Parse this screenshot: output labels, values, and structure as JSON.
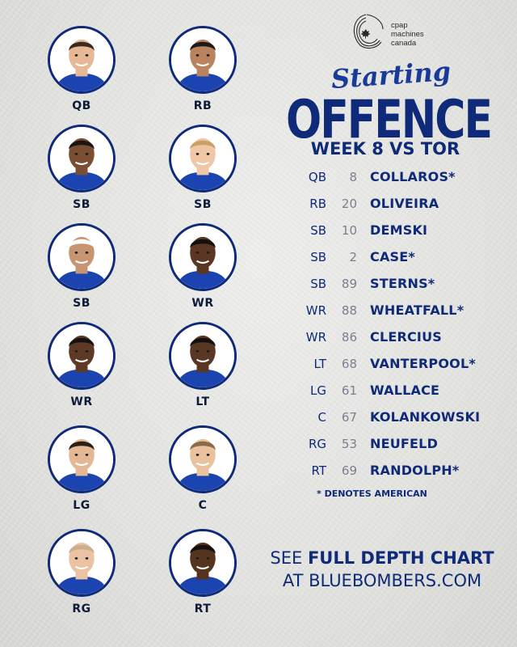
{
  "sponsor": {
    "logo_icon": "cpap-leaf-swirl-icon",
    "lines": [
      "cpap",
      "machines",
      "canada"
    ]
  },
  "header": {
    "script_title": "Starting",
    "main_title": "OFFENCE",
    "subtitle": "WEEK 8 VS TOR"
  },
  "players": [
    {
      "position": "QB",
      "skin": "#e6b896",
      "hair": "#3b2a20"
    },
    {
      "position": "RB",
      "skin": "#b8835e",
      "hair": "#1e1a18"
    },
    {
      "position": "SB",
      "skin": "#7a4e33",
      "hair": "#1a1412"
    },
    {
      "position": "SB",
      "skin": "#f0c8a8",
      "hair": "#c9a066"
    },
    {
      "position": "SB",
      "skin": "#c89572",
      "hair": "#ffffff"
    },
    {
      "position": "WR",
      "skin": "#5a3623",
      "hair": "#141010"
    },
    {
      "position": "WR",
      "skin": "#5e3a26",
      "hair": "#161210"
    },
    {
      "position": "LT",
      "skin": "#5a3724",
      "hair": "#141010"
    },
    {
      "position": "LG",
      "skin": "#e4b894",
      "hair": "#2a201a"
    },
    {
      "position": "C",
      "skin": "#eac29e",
      "hair": "#8a6a48"
    },
    {
      "position": "RG",
      "skin": "#ecc2a4",
      "hair": "#c9b08a"
    },
    {
      "position": "RT",
      "skin": "#55341f",
      "hair": "#121010"
    }
  ],
  "roster": [
    {
      "pos": "QB",
      "num": "8",
      "name": "COLLAROS*"
    },
    {
      "pos": "RB",
      "num": "20",
      "name": "OLIVEIRA"
    },
    {
      "pos": "SB",
      "num": "10",
      "name": "DEMSKI"
    },
    {
      "pos": "SB",
      "num": "2",
      "name": "CASE*"
    },
    {
      "pos": "SB",
      "num": "89",
      "name": "STERNS*"
    },
    {
      "pos": "WR",
      "num": "88",
      "name": "WHEATFALL*"
    },
    {
      "pos": "WR",
      "num": "86",
      "name": "CLERCIUS"
    },
    {
      "pos": "LT",
      "num": "68",
      "name": "VANTERPOOL*"
    },
    {
      "pos": "LG",
      "num": "61",
      "name": "WALLACE"
    },
    {
      "pos": "C",
      "num": "67",
      "name": "KOLANKOWSKI"
    },
    {
      "pos": "RG",
      "num": "53",
      "name": "NEUFELD"
    },
    {
      "pos": "RT",
      "num": "69",
      "name": "RANDOLPH*"
    }
  ],
  "footnote": "* DENOTES AMERICAN",
  "cta": {
    "prefix": "SEE ",
    "bold": "FULL DEPTH CHART",
    "line2": "AT BLUEBOMBERS.COM"
  },
  "colors": {
    "navy": "#0e2a78",
    "jersey": "#1c44b0",
    "number_grey": "#7a7f8f"
  }
}
